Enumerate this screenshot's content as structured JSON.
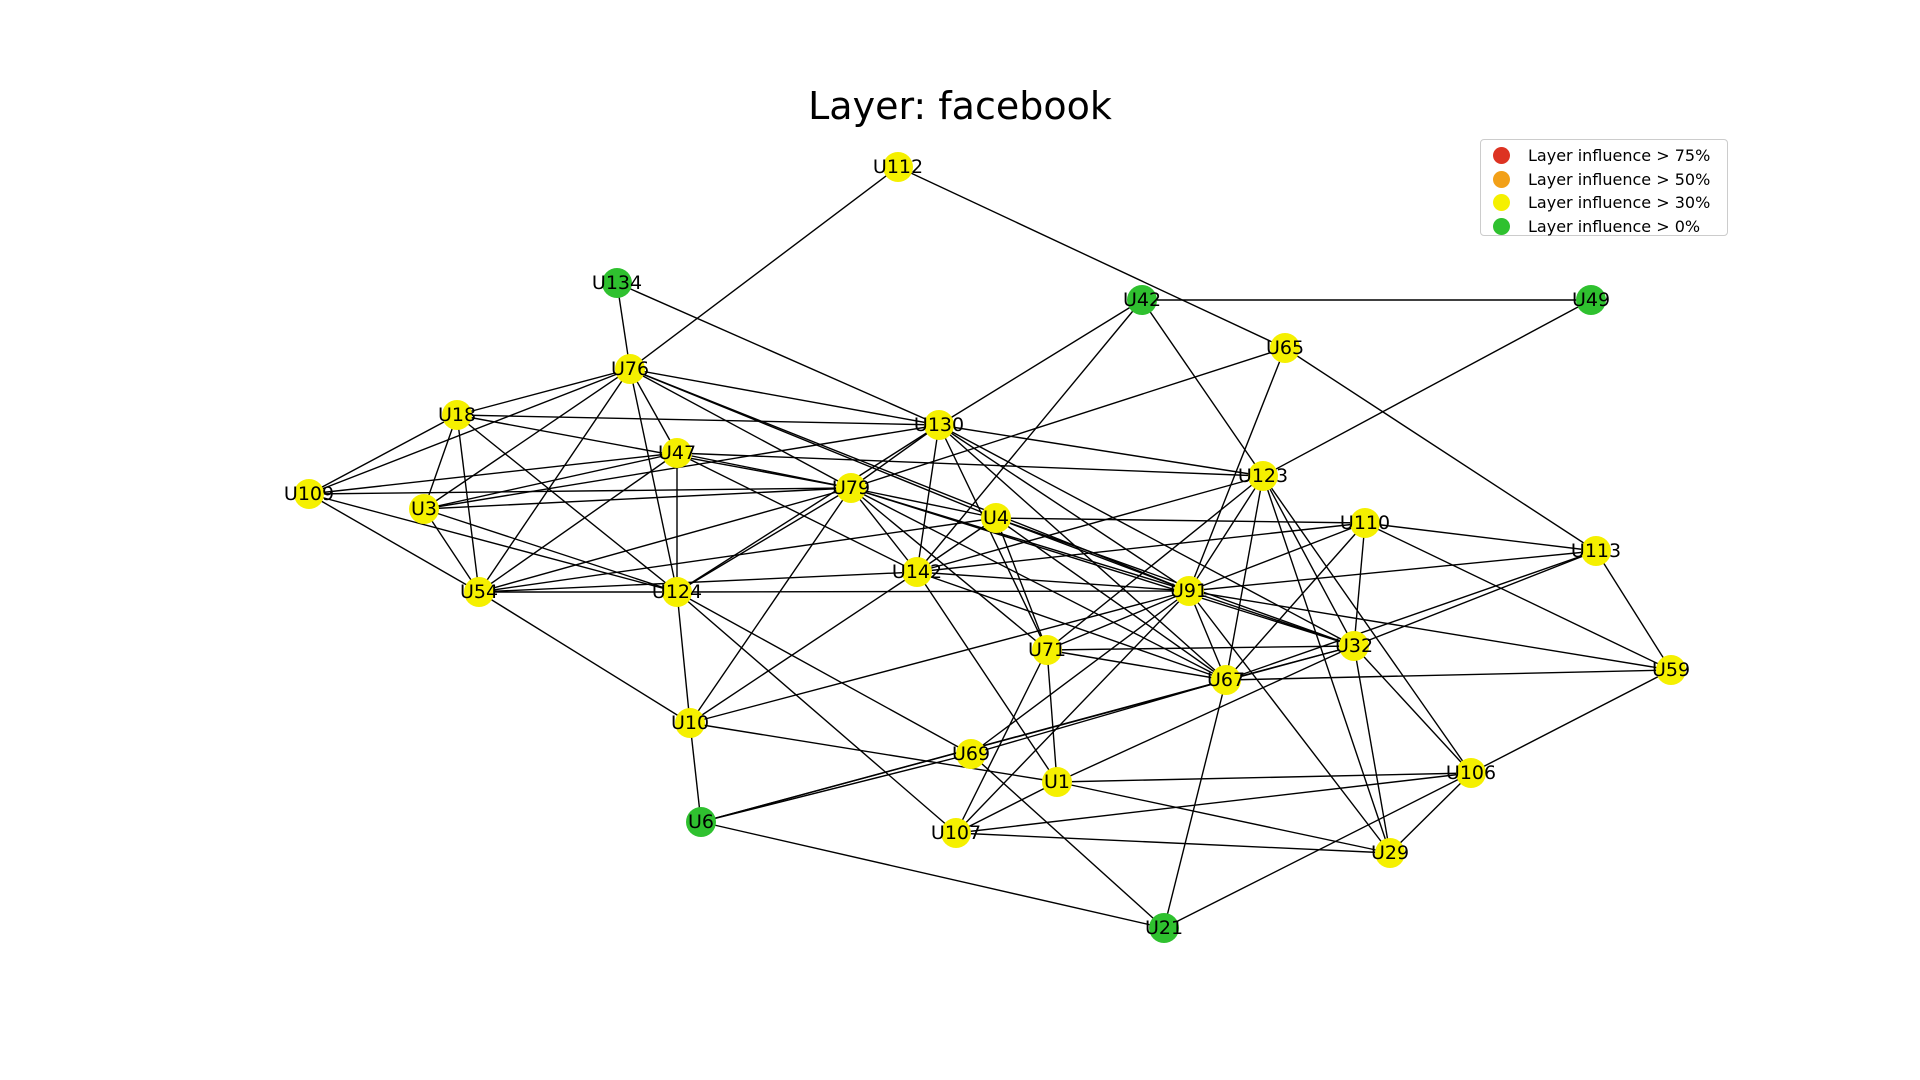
{
  "title": "Layer: facebook",
  "legend": [
    {
      "label": "Layer influence > 75%",
      "color": "#dd3322"
    },
    {
      "label": "Layer influence > 50%",
      "color": "#f2a018"
    },
    {
      "label": "Layer influence > 30%",
      "color": "#f5f000"
    },
    {
      "label": "Layer influence > 0%",
      "color": "#2fc12f"
    }
  ],
  "nodes": [
    {
      "id": "U112",
      "level": "30"
    },
    {
      "id": "U134",
      "level": "0"
    },
    {
      "id": "U42",
      "level": "0"
    },
    {
      "id": "U49",
      "level": "0"
    },
    {
      "id": "U65",
      "level": "30"
    },
    {
      "id": "U76",
      "level": "30"
    },
    {
      "id": "U18",
      "level": "30"
    },
    {
      "id": "U130",
      "level": "30"
    },
    {
      "id": "U47",
      "level": "30"
    },
    {
      "id": "U123",
      "level": "30"
    },
    {
      "id": "U109",
      "level": "30"
    },
    {
      "id": "U3",
      "level": "30"
    },
    {
      "id": "U79",
      "level": "30"
    },
    {
      "id": "U4",
      "level": "30"
    },
    {
      "id": "U110",
      "level": "30"
    },
    {
      "id": "U113",
      "level": "30"
    },
    {
      "id": "U142",
      "level": "30"
    },
    {
      "id": "U54",
      "level": "30"
    },
    {
      "id": "U124",
      "level": "30"
    },
    {
      "id": "U91",
      "level": "30"
    },
    {
      "id": "U32",
      "level": "30"
    },
    {
      "id": "U71",
      "level": "30"
    },
    {
      "id": "U67",
      "level": "30"
    },
    {
      "id": "U59",
      "level": "30"
    },
    {
      "id": "U10",
      "level": "30"
    },
    {
      "id": "U69",
      "level": "30"
    },
    {
      "id": "U1",
      "level": "30"
    },
    {
      "id": "U106",
      "level": "30"
    },
    {
      "id": "U6",
      "level": "0"
    },
    {
      "id": "U107",
      "level": "30"
    },
    {
      "id": "U29",
      "level": "30"
    },
    {
      "id": "U21",
      "level": "0"
    }
  ],
  "edges": [
    [
      "U112",
      "U76"
    ],
    [
      "U112",
      "U65"
    ],
    [
      "U134",
      "U76"
    ],
    [
      "U134",
      "U130"
    ],
    [
      "U42",
      "U49"
    ],
    [
      "U42",
      "U130"
    ],
    [
      "U42",
      "U123"
    ],
    [
      "U42",
      "U142"
    ],
    [
      "U49",
      "U123"
    ],
    [
      "U65",
      "U79"
    ],
    [
      "U65",
      "U91"
    ],
    [
      "U65",
      "U113"
    ],
    [
      "U76",
      "U18"
    ],
    [
      "U76",
      "U109"
    ],
    [
      "U76",
      "U3"
    ],
    [
      "U76",
      "U130"
    ],
    [
      "U76",
      "U47"
    ],
    [
      "U76",
      "U79"
    ],
    [
      "U76",
      "U4"
    ],
    [
      "U76",
      "U54"
    ],
    [
      "U76",
      "U124"
    ],
    [
      "U76",
      "U91"
    ],
    [
      "U18",
      "U109"
    ],
    [
      "U18",
      "U3"
    ],
    [
      "U18",
      "U54"
    ],
    [
      "U18",
      "U79"
    ],
    [
      "U18",
      "U130"
    ],
    [
      "U18",
      "U124"
    ],
    [
      "U130",
      "U79"
    ],
    [
      "U130",
      "U3"
    ],
    [
      "U130",
      "U142"
    ],
    [
      "U130",
      "U123"
    ],
    [
      "U130",
      "U91"
    ],
    [
      "U130",
      "U67"
    ],
    [
      "U130",
      "U32"
    ],
    [
      "U130",
      "U124"
    ],
    [
      "U130",
      "U71"
    ],
    [
      "U47",
      "U109"
    ],
    [
      "U47",
      "U3"
    ],
    [
      "U47",
      "U54"
    ],
    [
      "U47",
      "U124"
    ],
    [
      "U47",
      "U79"
    ],
    [
      "U47",
      "U123"
    ],
    [
      "U47",
      "U142"
    ],
    [
      "U123",
      "U91"
    ],
    [
      "U123",
      "U67"
    ],
    [
      "U123",
      "U32"
    ],
    [
      "U123",
      "U106"
    ],
    [
      "U123",
      "U29"
    ],
    [
      "U123",
      "U71"
    ],
    [
      "U123",
      "U142"
    ],
    [
      "U109",
      "U79"
    ],
    [
      "U109",
      "U54"
    ],
    [
      "U109",
      "U124"
    ],
    [
      "U3",
      "U54"
    ],
    [
      "U3",
      "U124"
    ],
    [
      "U3",
      "U79"
    ],
    [
      "U79",
      "U4"
    ],
    [
      "U79",
      "U142"
    ],
    [
      "U79",
      "U91"
    ],
    [
      "U79",
      "U54"
    ],
    [
      "U79",
      "U124"
    ],
    [
      "U79",
      "U32"
    ],
    [
      "U79",
      "U67"
    ],
    [
      "U79",
      "U10"
    ],
    [
      "U79",
      "U71"
    ],
    [
      "U4",
      "U142"
    ],
    [
      "U4",
      "U91"
    ],
    [
      "U4",
      "U67"
    ],
    [
      "U4",
      "U110"
    ],
    [
      "U4",
      "U54"
    ],
    [
      "U4",
      "U71"
    ],
    [
      "U4",
      "U32"
    ],
    [
      "U110",
      "U142"
    ],
    [
      "U110",
      "U91"
    ],
    [
      "U110",
      "U113"
    ],
    [
      "U110",
      "U59"
    ],
    [
      "U110",
      "U32"
    ],
    [
      "U110",
      "U67"
    ],
    [
      "U113",
      "U91"
    ],
    [
      "U113",
      "U59"
    ],
    [
      "U113",
      "U67"
    ],
    [
      "U113",
      "U32"
    ],
    [
      "U142",
      "U54"
    ],
    [
      "U142",
      "U91"
    ],
    [
      "U142",
      "U10"
    ],
    [
      "U142",
      "U1"
    ],
    [
      "U142",
      "U67"
    ],
    [
      "U54",
      "U124"
    ],
    [
      "U54",
      "U10"
    ],
    [
      "U124",
      "U91"
    ],
    [
      "U124",
      "U10"
    ],
    [
      "U124",
      "U69"
    ],
    [
      "U124",
      "U107"
    ],
    [
      "U91",
      "U32"
    ],
    [
      "U91",
      "U67"
    ],
    [
      "U91",
      "U71"
    ],
    [
      "U91",
      "U59"
    ],
    [
      "U91",
      "U29"
    ],
    [
      "U91",
      "U69"
    ],
    [
      "U91",
      "U10"
    ],
    [
      "U91",
      "U107"
    ],
    [
      "U32",
      "U71"
    ],
    [
      "U32",
      "U67"
    ],
    [
      "U32",
      "U29"
    ],
    [
      "U32",
      "U106"
    ],
    [
      "U32",
      "U6"
    ],
    [
      "U32",
      "U1"
    ],
    [
      "U71",
      "U67"
    ],
    [
      "U71",
      "U1"
    ],
    [
      "U71",
      "U107"
    ],
    [
      "U67",
      "U59"
    ],
    [
      "U67",
      "U69"
    ],
    [
      "U67",
      "U6"
    ],
    [
      "U67",
      "U21"
    ],
    [
      "U59",
      "U106"
    ],
    [
      "U10",
      "U6"
    ],
    [
      "U10",
      "U1"
    ],
    [
      "U69",
      "U6"
    ],
    [
      "U69",
      "U21"
    ],
    [
      "U1",
      "U106"
    ],
    [
      "U1",
      "U29"
    ],
    [
      "U1",
      "U107"
    ],
    [
      "U106",
      "U107"
    ],
    [
      "U106",
      "U21"
    ],
    [
      "U106",
      "U29"
    ],
    [
      "U6",
      "U21"
    ],
    [
      "U107",
      "U29"
    ]
  ]
}
